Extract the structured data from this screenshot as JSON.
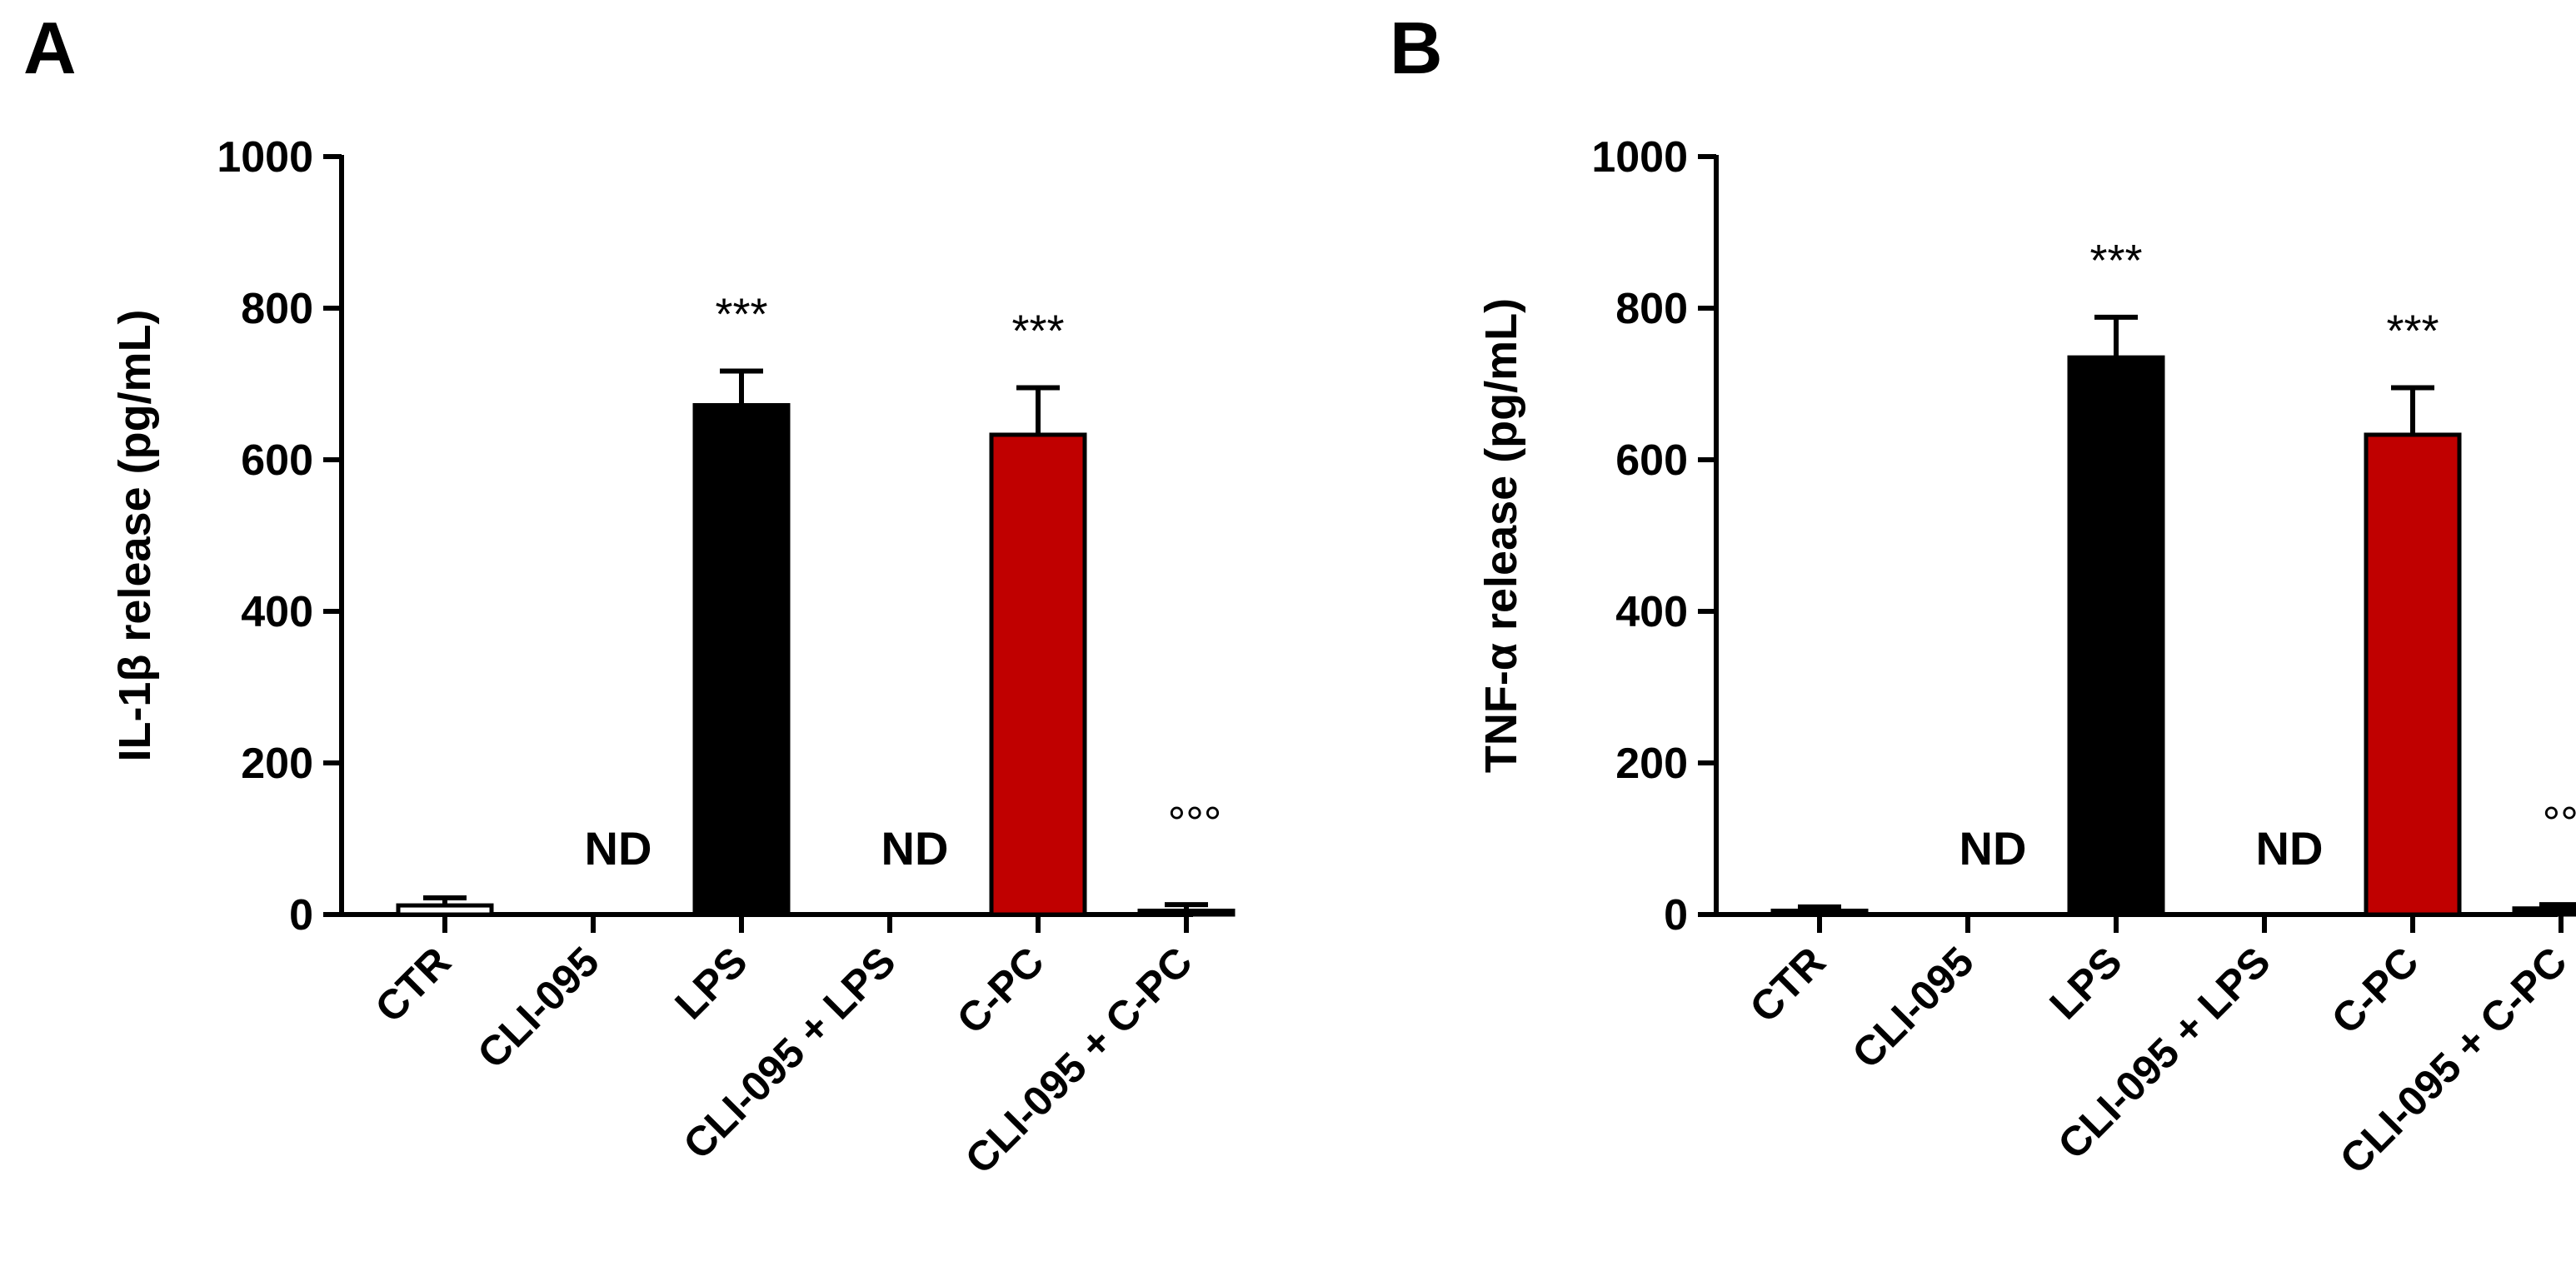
{
  "chart_data": [
    {
      "type": "bar",
      "panel_label": "A",
      "ylabel": "IL-1β release (pg/mL)",
      "ylim": [
        0,
        1000
      ],
      "yticks": [
        0,
        200,
        400,
        600,
        800,
        1000
      ],
      "categories": [
        "CTR",
        "CLI-095",
        "LPS",
        "CLI-095 + LPS",
        "C-PC",
        "CLI-095 + C-PC"
      ],
      "values": [
        12,
        null,
        672,
        null,
        633,
        5
      ],
      "errors": [
        10,
        null,
        45,
        null,
        62,
        8
      ],
      "colors": [
        "#ffffff",
        "#ffffff",
        "#000000",
        "#ffffff",
        "#c00000",
        "#000000"
      ],
      "bar_labels": [
        "",
        "ND",
        "",
        "ND",
        "",
        ""
      ],
      "annotations": [
        "",
        "",
        "***",
        "",
        "***",
        "°°°"
      ]
    },
    {
      "type": "bar",
      "panel_label": "B",
      "ylabel": "TNF-α release (pg/mL)",
      "ylim": [
        0,
        1000
      ],
      "yticks": [
        0,
        200,
        400,
        600,
        800,
        1000
      ],
      "categories": [
        "CTR",
        "CLI-095",
        "LPS",
        "CLI-095 + LPS",
        "C-PC",
        "CLI-095 + C-PC"
      ],
      "values": [
        5,
        null,
        735,
        null,
        633,
        8
      ],
      "errors": [
        5,
        null,
        53,
        null,
        62,
        5
      ],
      "colors": [
        "#ffffff",
        "#ffffff",
        "#000000",
        "#ffffff",
        "#c00000",
        "#000000"
      ],
      "bar_labels": [
        "",
        "ND",
        "",
        "ND",
        "",
        ""
      ],
      "annotations": [
        "",
        "",
        "***",
        "",
        "***",
        "°°°"
      ]
    }
  ]
}
